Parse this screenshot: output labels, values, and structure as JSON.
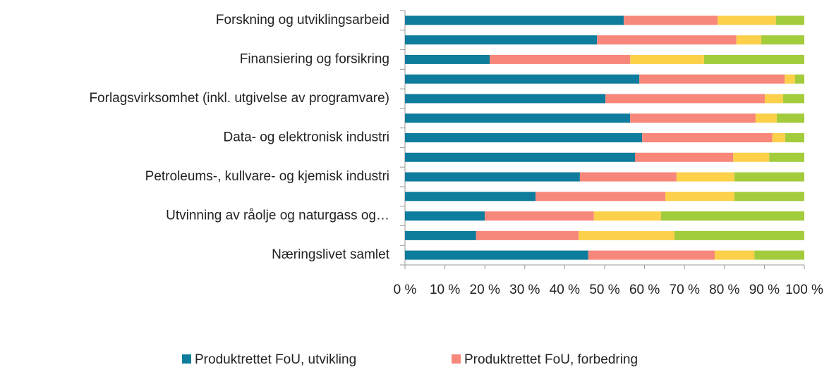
{
  "chart_data": {
    "type": "stacked-bar-horizontal",
    "categories": [
      "Forskning og utviklingsarbeid",
      null,
      "Finansiering og forsikring",
      null,
      "Forlagsvirksomhet (inkl. utgivelse av programvare)",
      null,
      "Data- og elektronisk industri",
      null,
      "Petroleums-, kullvare- og kjemisk industri",
      null,
      "Utvinning av råolje og naturgass og…",
      null,
      "Næringslivet samlet"
    ],
    "series": [
      {
        "name": "Produktrettet FoU, utvikling",
        "color": "#0e7c9c",
        "values": [
          54.8,
          48.1,
          21.2,
          58.7,
          50.2,
          56.4,
          59.4,
          57.6,
          43.8,
          32.7,
          20.0,
          17.8,
          45.9
        ]
      },
      {
        "name": "Produktrettet FoU, forbedring",
        "color": "#f7877a",
        "values": [
          23.5,
          34.9,
          35.2,
          36.4,
          39.9,
          31.4,
          32.6,
          24.6,
          24.2,
          32.5,
          27.3,
          25.7,
          31.7
        ]
      },
      {
        "name": null,
        "color": "#fdd04a",
        "values": [
          14.6,
          6.2,
          18.5,
          2.6,
          4.6,
          5.3,
          3.2,
          9.0,
          14.5,
          17.3,
          16.8,
          24.0,
          9.9
        ]
      },
      {
        "name": null,
        "color": "#a3cc3c",
        "values": [
          7.1,
          10.8,
          25.1,
          2.3,
          5.3,
          6.9,
          4.8,
          8.8,
          17.5,
          17.5,
          35.9,
          32.5,
          12.5
        ]
      }
    ],
    "xlim": [
      0,
      100
    ],
    "xticks": [
      {
        "value": 0,
        "label": "0 %"
      },
      {
        "value": 10,
        "label": "10 %"
      },
      {
        "value": 20,
        "label": "20 %"
      },
      {
        "value": 30,
        "label": "30 %"
      },
      {
        "value": 40,
        "label": "40 %"
      },
      {
        "value": 50,
        "label": "50 %"
      },
      {
        "value": 60,
        "label": "60 %"
      },
      {
        "value": 70,
        "label": "70 %"
      },
      {
        "value": 80,
        "label": "80 %"
      },
      {
        "value": 90,
        "label": "90 %"
      },
      {
        "value": 100,
        "label": "100 %"
      }
    ],
    "legend": "bottom"
  }
}
